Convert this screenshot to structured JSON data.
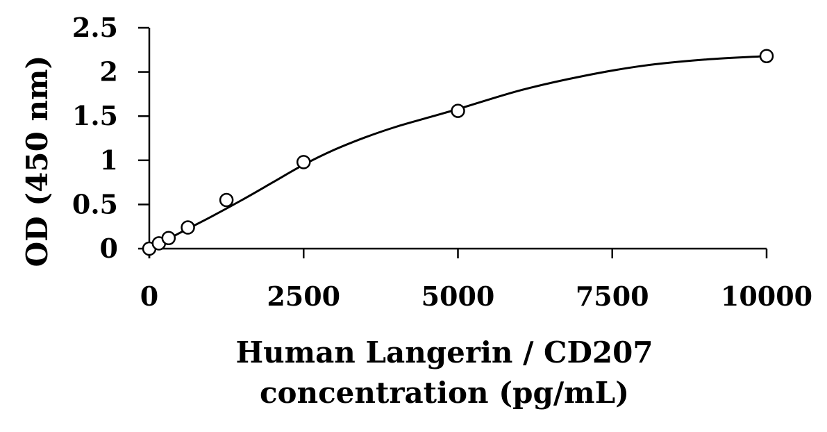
{
  "chart_data": {
    "type": "scatter",
    "title": "",
    "xlabel_lines": [
      "Human Langerin / CD207",
      "concentration (pg/mL)"
    ],
    "ylabel": "OD (450 nm)",
    "xlim": [
      0,
      10000
    ],
    "ylim": [
      0,
      2.5
    ],
    "x_ticks": [
      "0",
      "2500",
      "5000",
      "7500",
      "10000"
    ],
    "y_ticks": [
      "0",
      "0.5",
      "1",
      "1.5",
      "2",
      "2.5"
    ],
    "grid": false,
    "series": [
      {
        "marker": "open-circle",
        "points": [
          {
            "x": 0,
            "y": 0.0
          },
          {
            "x": 156,
            "y": 0.06
          },
          {
            "x": 313,
            "y": 0.12
          },
          {
            "x": 625,
            "y": 0.24
          },
          {
            "x": 1250,
            "y": 0.55
          },
          {
            "x": 2500,
            "y": 0.98
          },
          {
            "x": 5000,
            "y": 1.56
          },
          {
            "x": 10000,
            "y": 2.18
          }
        ]
      }
    ],
    "fit_curve": {
      "points": [
        {
          "x": 0,
          "y": 0.0
        },
        {
          "x": 250,
          "y": 0.09
        },
        {
          "x": 500,
          "y": 0.18
        },
        {
          "x": 750,
          "y": 0.27
        },
        {
          "x": 1000,
          "y": 0.36
        },
        {
          "x": 1500,
          "y": 0.55
        },
        {
          "x": 2000,
          "y": 0.75
        },
        {
          "x": 2500,
          "y": 0.95
        },
        {
          "x": 3000,
          "y": 1.12
        },
        {
          "x": 3500,
          "y": 1.26
        },
        {
          "x": 4000,
          "y": 1.38
        },
        {
          "x": 4500,
          "y": 1.48
        },
        {
          "x": 5000,
          "y": 1.58
        },
        {
          "x": 6000,
          "y": 1.79
        },
        {
          "x": 7000,
          "y": 1.95
        },
        {
          "x": 8000,
          "y": 2.07
        },
        {
          "x": 9000,
          "y": 2.14
        },
        {
          "x": 10000,
          "y": 2.18
        }
      ]
    },
    "colors": {
      "line": "#000000",
      "marker_stroke": "#000000",
      "marker_fill": "#ffffff"
    }
  }
}
